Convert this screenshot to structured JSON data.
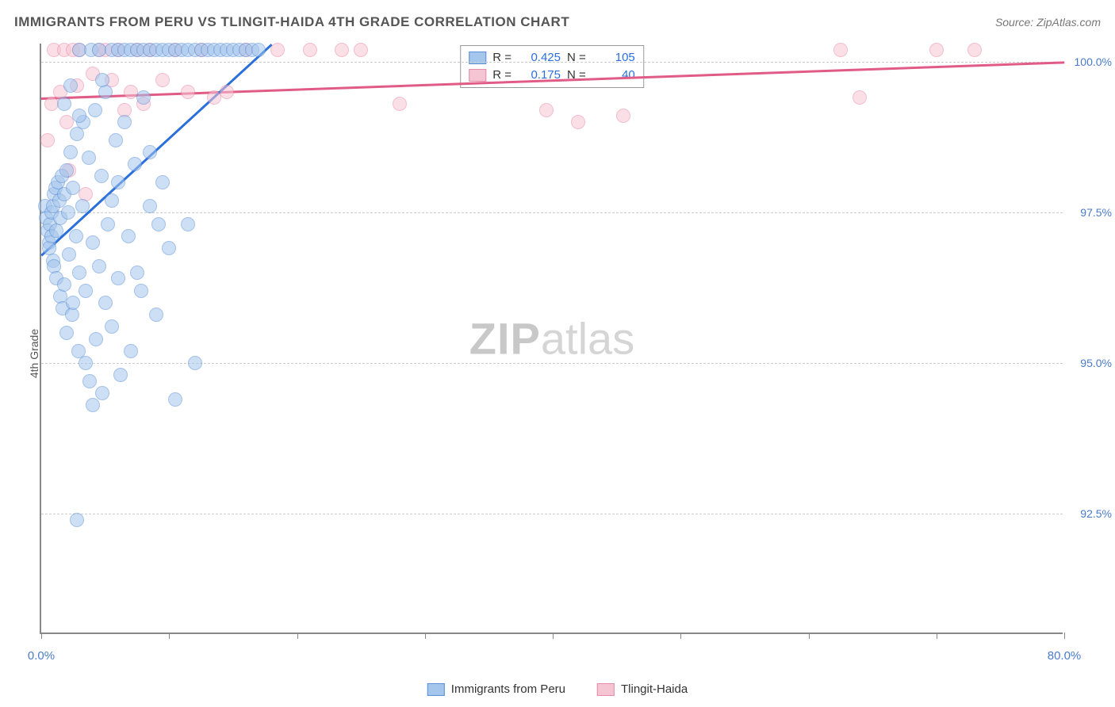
{
  "header": {
    "title": "IMMIGRANTS FROM PERU VS TLINGIT-HAIDA 4TH GRADE CORRELATION CHART",
    "source_label": "Source: ",
    "source_name": "ZipAtlas.com"
  },
  "axes": {
    "y_label": "4th Grade",
    "x_min": 0.0,
    "x_max": 80.0,
    "y_min": 90.5,
    "y_max": 100.3,
    "y_ticks": [
      {
        "value": 100.0,
        "label": "100.0%"
      },
      {
        "value": 97.5,
        "label": "97.5%"
      },
      {
        "value": 95.0,
        "label": "95.0%"
      },
      {
        "value": 92.5,
        "label": "92.5%"
      }
    ],
    "x_tick_values": [
      0,
      10,
      20,
      30,
      40,
      50,
      60,
      70,
      80
    ],
    "x_tick_labels": [
      {
        "value": 0.0,
        "label": "0.0%"
      },
      {
        "value": 80.0,
        "label": "80.0%"
      }
    ]
  },
  "series": {
    "blue": {
      "name": "Immigrants from Peru",
      "fill": "#a4c5ec",
      "stroke": "#5b8fd6",
      "trend_color": "#2a6fdb",
      "R": "0.425",
      "N": "105",
      "trend": {
        "x1": 0.0,
        "y1": 96.8,
        "x2": 18.0,
        "y2": 100.3
      },
      "points": [
        [
          0.3,
          97.6
        ],
        [
          0.4,
          97.4
        ],
        [
          0.5,
          97.2
        ],
        [
          0.6,
          97.0
        ],
        [
          0.6,
          96.9
        ],
        [
          0.7,
          97.3
        ],
        [
          0.8,
          97.1
        ],
        [
          0.8,
          97.5
        ],
        [
          0.9,
          96.7
        ],
        [
          0.9,
          97.6
        ],
        [
          1.0,
          97.8
        ],
        [
          1.0,
          96.6
        ],
        [
          1.1,
          97.9
        ],
        [
          1.2,
          97.2
        ],
        [
          1.2,
          96.4
        ],
        [
          1.3,
          98.0
        ],
        [
          1.4,
          97.7
        ],
        [
          1.5,
          96.1
        ],
        [
          1.5,
          97.4
        ],
        [
          1.6,
          98.1
        ],
        [
          1.7,
          95.9
        ],
        [
          1.8,
          97.8
        ],
        [
          1.8,
          96.3
        ],
        [
          2.0,
          98.2
        ],
        [
          2.0,
          95.5
        ],
        [
          2.1,
          97.5
        ],
        [
          2.2,
          96.8
        ],
        [
          2.3,
          98.5
        ],
        [
          2.4,
          95.8
        ],
        [
          2.5,
          97.9
        ],
        [
          2.5,
          96.0
        ],
        [
          2.7,
          97.1
        ],
        [
          2.8,
          98.8
        ],
        [
          2.9,
          95.2
        ],
        [
          3.0,
          96.5
        ],
        [
          3.0,
          100.2
        ],
        [
          3.2,
          97.6
        ],
        [
          3.3,
          99.0
        ],
        [
          3.5,
          96.2
        ],
        [
          3.5,
          95.0
        ],
        [
          3.7,
          98.4
        ],
        [
          3.8,
          94.7
        ],
        [
          3.9,
          100.2
        ],
        [
          4.0,
          97.0
        ],
        [
          4.2,
          99.2
        ],
        [
          4.3,
          95.4
        ],
        [
          4.5,
          96.6
        ],
        [
          4.5,
          100.2
        ],
        [
          4.7,
          98.1
        ],
        [
          4.8,
          94.5
        ],
        [
          5.0,
          99.5
        ],
        [
          5.0,
          96.0
        ],
        [
          5.2,
          97.3
        ],
        [
          5.5,
          95.6
        ],
        [
          5.5,
          100.2
        ],
        [
          5.8,
          98.7
        ],
        [
          6.0,
          96.4
        ],
        [
          6.0,
          100.2
        ],
        [
          6.2,
          94.8
        ],
        [
          6.5,
          99.0
        ],
        [
          6.5,
          100.2
        ],
        [
          6.8,
          97.1
        ],
        [
          7.0,
          95.2
        ],
        [
          7.0,
          100.2
        ],
        [
          7.3,
          98.3
        ],
        [
          7.5,
          100.2
        ],
        [
          7.8,
          96.2
        ],
        [
          8.0,
          99.4
        ],
        [
          8.0,
          100.2
        ],
        [
          8.5,
          100.2
        ],
        [
          8.5,
          97.6
        ],
        [
          9.0,
          100.2
        ],
        [
          9.0,
          95.8
        ],
        [
          9.5,
          100.2
        ],
        [
          9.5,
          98.0
        ],
        [
          10.0,
          100.2
        ],
        [
          10.0,
          96.9
        ],
        [
          10.5,
          100.2
        ],
        [
          10.5,
          94.4
        ],
        [
          11.0,
          100.2
        ],
        [
          11.5,
          100.2
        ],
        [
          11.5,
          97.3
        ],
        [
          12.0,
          100.2
        ],
        [
          12.5,
          100.2
        ],
        [
          12.0,
          95.0
        ],
        [
          13.0,
          100.2
        ],
        [
          13.5,
          100.2
        ],
        [
          14.0,
          100.2
        ],
        [
          14.5,
          100.2
        ],
        [
          15.0,
          100.2
        ],
        [
          15.5,
          100.2
        ],
        [
          16.0,
          100.2
        ],
        [
          16.5,
          100.2
        ],
        [
          17.0,
          100.2
        ],
        [
          4.0,
          94.3
        ],
        [
          2.8,
          92.4
        ],
        [
          8.5,
          98.5
        ],
        [
          9.2,
          97.3
        ],
        [
          6.0,
          98.0
        ],
        [
          4.8,
          99.7
        ],
        [
          3.0,
          99.1
        ],
        [
          1.8,
          99.3
        ],
        [
          2.3,
          99.6
        ],
        [
          5.5,
          97.7
        ],
        [
          7.5,
          96.5
        ]
      ]
    },
    "pink": {
      "name": "Tlingit-Haida",
      "fill": "#f6c5d4",
      "stroke": "#e88aa8",
      "trend_color": "#e15b87",
      "R": "0.175",
      "N": "40",
      "trend": {
        "x1": 0.0,
        "y1": 99.4,
        "x2": 80.0,
        "y2": 100.0
      },
      "points": [
        [
          0.5,
          98.7
        ],
        [
          0.8,
          99.3
        ],
        [
          1.0,
          100.2
        ],
        [
          1.5,
          99.5
        ],
        [
          1.8,
          100.2
        ],
        [
          2.0,
          99.0
        ],
        [
          2.5,
          100.2
        ],
        [
          2.8,
          99.6
        ],
        [
          3.0,
          100.2
        ],
        [
          3.5,
          97.8
        ],
        [
          4.5,
          100.2
        ],
        [
          5.0,
          100.2
        ],
        [
          5.5,
          99.7
        ],
        [
          6.0,
          100.2
        ],
        [
          7.0,
          99.5
        ],
        [
          7.5,
          100.2
        ],
        [
          8.0,
          99.3
        ],
        [
          8.5,
          100.2
        ],
        [
          9.5,
          99.7
        ],
        [
          10.5,
          100.2
        ],
        [
          11.5,
          99.5
        ],
        [
          12.5,
          100.2
        ],
        [
          14.5,
          99.5
        ],
        [
          16.0,
          100.2
        ],
        [
          18.5,
          100.2
        ],
        [
          21.0,
          100.2
        ],
        [
          23.5,
          100.2
        ],
        [
          25.0,
          100.2
        ],
        [
          28.0,
          99.3
        ],
        [
          39.5,
          99.2
        ],
        [
          42.0,
          99.0
        ],
        [
          45.5,
          99.1
        ],
        [
          62.5,
          100.2
        ],
        [
          64.0,
          99.4
        ],
        [
          70.0,
          100.2
        ],
        [
          73.0,
          100.2
        ],
        [
          2.2,
          98.2
        ],
        [
          4.0,
          99.8
        ],
        [
          6.5,
          99.2
        ],
        [
          13.5,
          99.4
        ]
      ]
    }
  },
  "bottom_legend": {
    "blue_label": "Immigrants from Peru",
    "pink_label": "Tlingit-Haida"
  },
  "watermark": {
    "zip": "ZIP",
    "atlas": "atlas"
  },
  "stats_legend": {
    "R_label": "R =",
    "N_label": "N ="
  },
  "colors": {
    "axis": "#888888",
    "text_gray": "#555555",
    "tick_blue": "#4a7bc8",
    "grid": "#cccccc"
  }
}
